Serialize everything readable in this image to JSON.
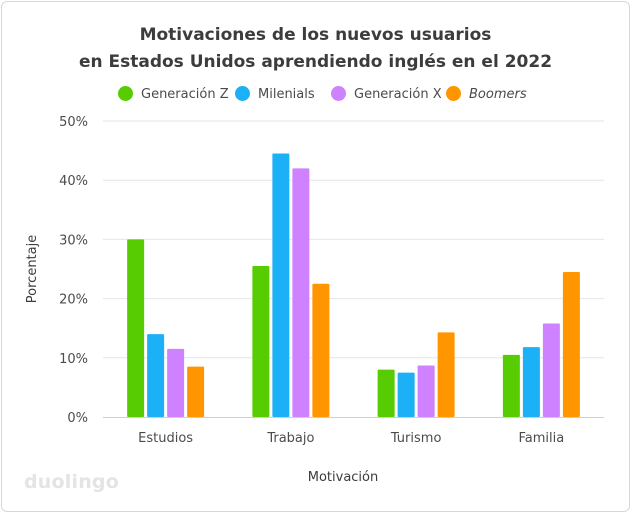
{
  "colors": {
    "generacion_z": "#58cc02",
    "milenials": "#1cb0f6",
    "generacion_x": "#ce82ff",
    "boomers": "#ff9600"
  },
  "logo": "duolingo",
  "chart_data": {
    "type": "bar",
    "title_line1": "Motivaciones de los nuevos usuarios",
    "title_line2": "en Estados Unidos aprendiendo inglés en el 2022",
    "xlabel": "Motivación",
    "ylabel": "Porcentaje",
    "ylim": [
      0,
      50
    ],
    "yticks": [
      0,
      10,
      20,
      30,
      40,
      50
    ],
    "ytick_labels": [
      "0%",
      "10%",
      "20%",
      "30%",
      "40%",
      "50%"
    ],
    "grid": true,
    "legend_position": "top-center",
    "categories": [
      "Estudios",
      "Trabajo",
      "Turismo",
      "Familia"
    ],
    "series": [
      {
        "name": "Generación Z",
        "color_key": "generacion_z",
        "values": [
          30,
          25.5,
          8,
          10.5
        ]
      },
      {
        "name": "Milenials",
        "color_key": "milenials",
        "values": [
          14,
          44.5,
          7.5,
          11.8
        ]
      },
      {
        "name": "Generación X",
        "color_key": "generacion_x",
        "values": [
          11.5,
          42,
          8.7,
          15.8
        ]
      },
      {
        "name": "Boomers",
        "color_key": "boomers",
        "values": [
          8.5,
          22.5,
          14.3,
          24.5
        ]
      }
    ]
  }
}
